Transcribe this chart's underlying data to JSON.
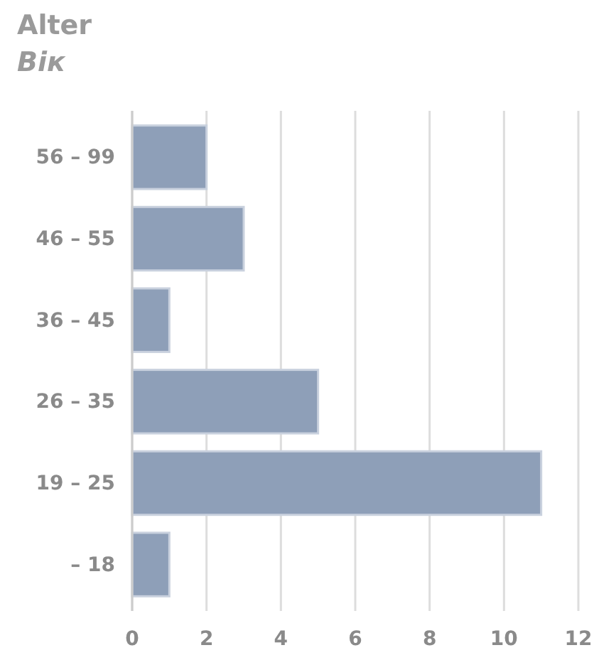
{
  "chart_data": {
    "type": "bar",
    "orientation": "horizontal",
    "title": "Alter",
    "subtitle": "Вік",
    "categories": [
      "56 – 99",
      "46 – 55",
      "36 – 45",
      "26 – 35",
      "19 – 25",
      "– 18"
    ],
    "values": [
      2,
      3,
      1,
      5,
      11,
      1
    ],
    "color": "#8e9fb8",
    "xlim": [
      0,
      12
    ],
    "xticks": [
      0,
      2,
      4,
      6,
      8,
      10,
      12
    ],
    "grid": "x"
  }
}
